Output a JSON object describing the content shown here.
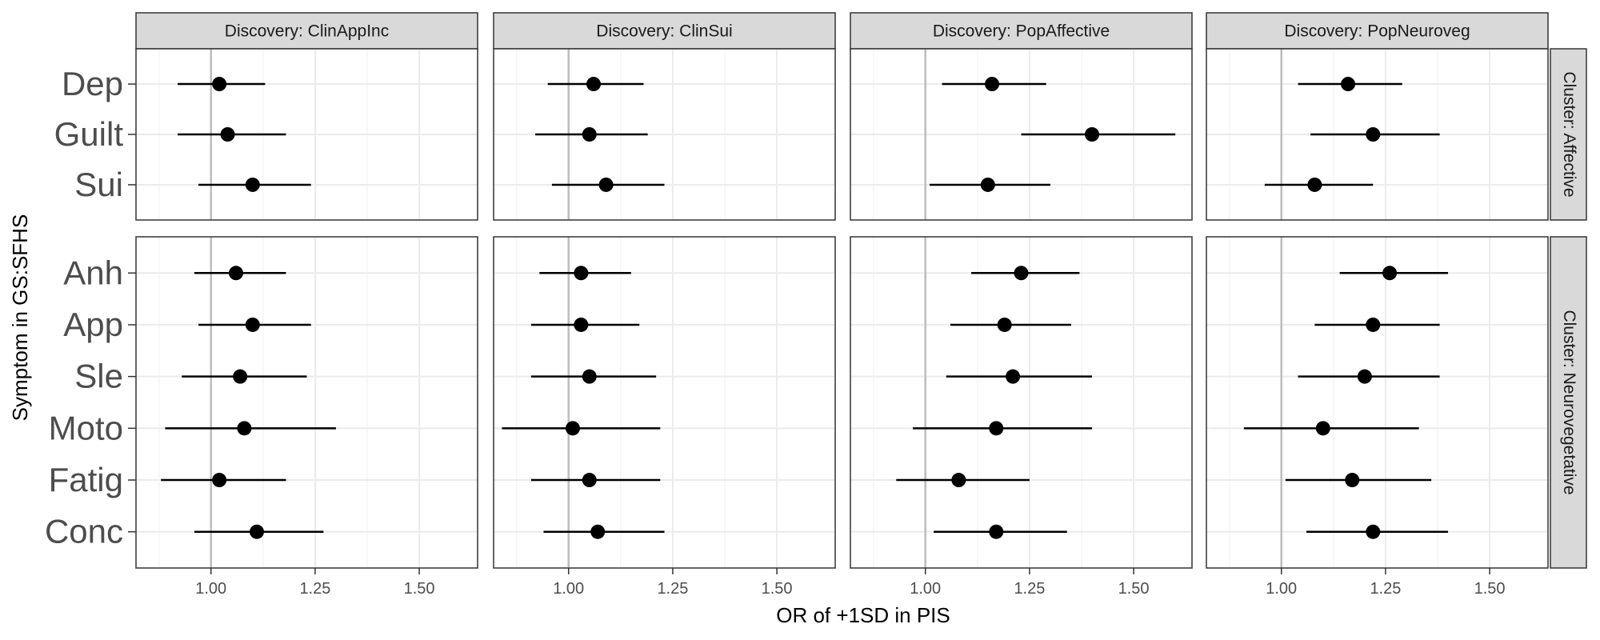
{
  "chart_data": {
    "type": "scatter",
    "subtype": "forest-plot-faceted",
    "xlabel": "OR of +1SD in PIS",
    "ylabel": "Symptom in GS:SFHS",
    "xlim": [
      0.82,
      1.64
    ],
    "x_ticks": [
      1.0,
      1.25,
      1.5
    ],
    "x_tick_labels": [
      "1.00",
      "1.25",
      "1.50"
    ],
    "reference_line": 1.0,
    "grid": true,
    "colors": {
      "point": "#000000",
      "strip_fill": "#d9d9d9",
      "grid": "#ebebeb",
      "reference": "#bdbdbd",
      "border": "#333333"
    },
    "columns": [
      "Discovery: ClinAppInc",
      "Discovery: ClinSui",
      "Discovery: PopAffective",
      "Discovery: PopNeuroveg"
    ],
    "rows": [
      {
        "label": "Cluster: Affective",
        "symptoms": [
          "Dep",
          "Guilt",
          "Sui"
        ]
      },
      {
        "label": "Cluster: Neurovegetative",
        "symptoms": [
          "Anh",
          "App",
          "Sle",
          "Moto",
          "Fatig",
          "Conc"
        ]
      }
    ],
    "series": [
      {
        "panel": "Discovery: ClinAppInc",
        "points": [
          {
            "symptom": "Dep",
            "or": 1.02,
            "lo": 0.92,
            "hi": 1.13
          },
          {
            "symptom": "Guilt",
            "or": 1.04,
            "lo": 0.92,
            "hi": 1.18
          },
          {
            "symptom": "Sui",
            "or": 1.1,
            "lo": 0.97,
            "hi": 1.24
          },
          {
            "symptom": "Anh",
            "or": 1.06,
            "lo": 0.96,
            "hi": 1.18
          },
          {
            "symptom": "App",
            "or": 1.1,
            "lo": 0.97,
            "hi": 1.24
          },
          {
            "symptom": "Sle",
            "or": 1.07,
            "lo": 0.93,
            "hi": 1.23
          },
          {
            "symptom": "Moto",
            "or": 1.08,
            "lo": 0.89,
            "hi": 1.3
          },
          {
            "symptom": "Fatig",
            "or": 1.02,
            "lo": 0.88,
            "hi": 1.18
          },
          {
            "symptom": "Conc",
            "or": 1.11,
            "lo": 0.96,
            "hi": 1.27
          }
        ]
      },
      {
        "panel": "Discovery: ClinSui",
        "points": [
          {
            "symptom": "Dep",
            "or": 1.06,
            "lo": 0.95,
            "hi": 1.18
          },
          {
            "symptom": "Guilt",
            "or": 1.05,
            "lo": 0.92,
            "hi": 1.19
          },
          {
            "symptom": "Sui",
            "or": 1.09,
            "lo": 0.96,
            "hi": 1.23
          },
          {
            "symptom": "Anh",
            "or": 1.03,
            "lo": 0.93,
            "hi": 1.15
          },
          {
            "symptom": "App",
            "or": 1.03,
            "lo": 0.91,
            "hi": 1.17
          },
          {
            "symptom": "Sle",
            "or": 1.05,
            "lo": 0.91,
            "hi": 1.21
          },
          {
            "symptom": "Moto",
            "or": 1.01,
            "lo": 0.84,
            "hi": 1.22
          },
          {
            "symptom": "Fatig",
            "or": 1.05,
            "lo": 0.91,
            "hi": 1.22
          },
          {
            "symptom": "Conc",
            "or": 1.07,
            "lo": 0.94,
            "hi": 1.23
          }
        ]
      },
      {
        "panel": "Discovery: PopAffective",
        "points": [
          {
            "symptom": "Dep",
            "or": 1.16,
            "lo": 1.04,
            "hi": 1.29
          },
          {
            "symptom": "Guilt",
            "or": 1.4,
            "lo": 1.23,
            "hi": 1.6
          },
          {
            "symptom": "Sui",
            "or": 1.15,
            "lo": 1.01,
            "hi": 1.3
          },
          {
            "symptom": "Anh",
            "or": 1.23,
            "lo": 1.11,
            "hi": 1.37
          },
          {
            "symptom": "App",
            "or": 1.19,
            "lo": 1.06,
            "hi": 1.35
          },
          {
            "symptom": "Sle",
            "or": 1.21,
            "lo": 1.05,
            "hi": 1.4
          },
          {
            "symptom": "Moto",
            "or": 1.17,
            "lo": 0.97,
            "hi": 1.4
          },
          {
            "symptom": "Fatig",
            "or": 1.08,
            "lo": 0.93,
            "hi": 1.25
          },
          {
            "symptom": "Conc",
            "or": 1.17,
            "lo": 1.02,
            "hi": 1.34
          }
        ]
      },
      {
        "panel": "Discovery: PopNeuroveg",
        "points": [
          {
            "symptom": "Dep",
            "or": 1.16,
            "lo": 1.04,
            "hi": 1.29
          },
          {
            "symptom": "Guilt",
            "or": 1.22,
            "lo": 1.07,
            "hi": 1.38
          },
          {
            "symptom": "Sui",
            "or": 1.08,
            "lo": 0.96,
            "hi": 1.22
          },
          {
            "symptom": "Anh",
            "or": 1.26,
            "lo": 1.14,
            "hi": 1.4
          },
          {
            "symptom": "App",
            "or": 1.22,
            "lo": 1.08,
            "hi": 1.38
          },
          {
            "symptom": "Sle",
            "or": 1.2,
            "lo": 1.04,
            "hi": 1.38
          },
          {
            "symptom": "Moto",
            "or": 1.1,
            "lo": 0.91,
            "hi": 1.33
          },
          {
            "symptom": "Fatig",
            "or": 1.17,
            "lo": 1.01,
            "hi": 1.36
          },
          {
            "symptom": "Conc",
            "or": 1.22,
            "lo": 1.06,
            "hi": 1.4
          }
        ]
      }
    ]
  }
}
